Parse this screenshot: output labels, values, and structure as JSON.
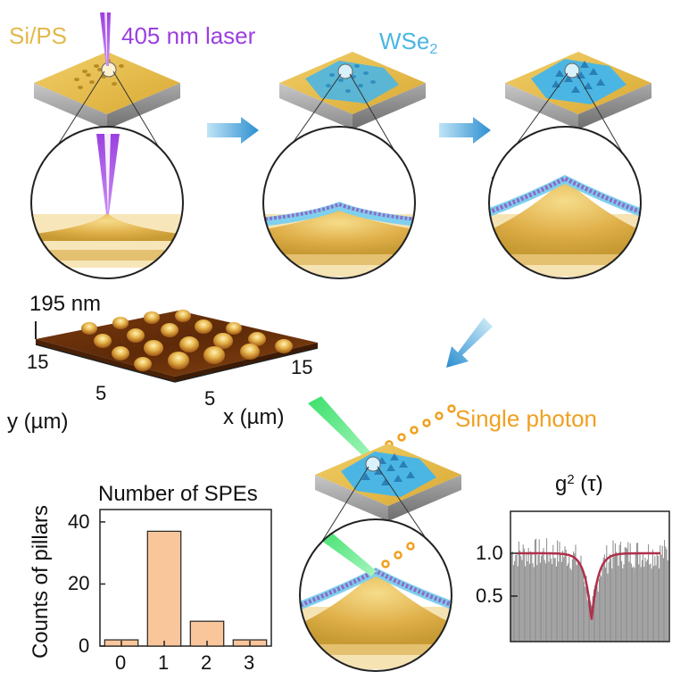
{
  "labels": {
    "substrate": "Si/PS",
    "laser": "405 nm laser",
    "material": "WSe",
    "material_sub": "2",
    "single_photon": "Single photon"
  },
  "afm": {
    "height": "195 nm",
    "y_ticks": [
      "15",
      "5"
    ],
    "x_ticks": [
      "5",
      "15"
    ],
    "y_label": "y (µm)",
    "x_label": "x (µm)"
  },
  "g2": {
    "title_main": "g",
    "title_sup": "2",
    "title_arg": " (τ)",
    "y_ticks": [
      "1.0",
      "0.5"
    ]
  },
  "colors": {
    "substrate": "#e3b84a",
    "laser": "#9b3fe0",
    "material": "#4bb6e3",
    "photon": "#f0a020",
    "bars": "#f9c69b",
    "fit": "#b0304a"
  },
  "chart_data": [
    {
      "type": "bar",
      "title": "Number of SPEs",
      "xlabel": "",
      "ylabel": "Counts of pillars",
      "categories": [
        "0",
        "1",
        "2",
        "3"
      ],
      "values": [
        2,
        37,
        8,
        2
      ],
      "yticks": [
        "0",
        "20",
        "40"
      ],
      "ylim": [
        0,
        44
      ],
      "grid": false
    },
    {
      "type": "line",
      "title": "g² (τ)",
      "yticks": [
        "1.0",
        "0.5"
      ],
      "series": [
        {
          "values": [
            1.0,
            1.0,
            1.0,
            1.0,
            0.98,
            0.92,
            0.7,
            0.2,
            0.7,
            0.92,
            0.98,
            1.0,
            1.0,
            1.0,
            1.0
          ]
        }
      ],
      "grid": false
    }
  ]
}
